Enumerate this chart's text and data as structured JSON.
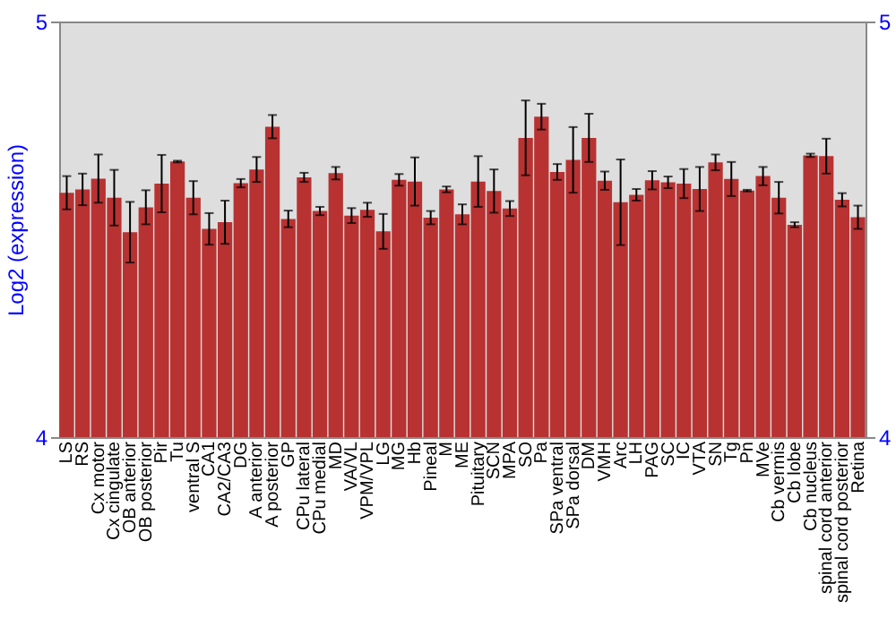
{
  "chart_data": {
    "type": "bar",
    "ylabel": "Log2 (expression)",
    "categories": [
      "LS",
      "RS",
      "Cx motor",
      "Cx cingulate",
      "OB anterior",
      "OB posterior",
      "Pir",
      "Tu",
      "ventral S",
      "CA1",
      "CA2/CA3",
      "DG",
      "A anterior",
      "A posterior",
      "GP",
      "CPu lateral",
      "CPu medial",
      "MD",
      "VA/VL",
      "VPM/VPL",
      "LG",
      "MG",
      "Hb",
      "Pineal",
      "M",
      "ME",
      "Pituitary",
      "SCN",
      "MPA",
      "SO",
      "Pa",
      "SPa ventral",
      "SPa dorsal",
      "DM",
      "VMH",
      "Arc",
      "LH",
      "PAG",
      "SC",
      "IC",
      "VTA",
      "SN",
      "Tg",
      "Pn",
      "MVe",
      "Cb vermis",
      "Cb lobe",
      "Cb nucleus",
      "spinal cord anterior",
      "spinal cord posterior",
      "Retina"
    ],
    "values": [
      4.588,
      4.596,
      4.622,
      4.576,
      4.493,
      4.553,
      4.61,
      4.663,
      4.576,
      4.501,
      4.517,
      4.611,
      4.644,
      4.747,
      4.525,
      4.625,
      4.544,
      4.635,
      4.533,
      4.547,
      4.495,
      4.619,
      4.615,
      4.528,
      4.596,
      4.536,
      4.615,
      4.592,
      4.55,
      4.72,
      4.771,
      4.638,
      4.667,
      4.72,
      4.617,
      4.565,
      4.583,
      4.618,
      4.613,
      4.61,
      4.597,
      4.661,
      4.621,
      4.593,
      4.628,
      4.576,
      4.511,
      4.678,
      4.676,
      4.571,
      4.529
    ],
    "errors": [
      0.04,
      0.038,
      0.058,
      0.067,
      0.073,
      0.041,
      0.069,
      0.002,
      0.04,
      0.038,
      0.052,
      0.01,
      0.03,
      0.028,
      0.02,
      0.011,
      0.01,
      0.015,
      0.018,
      0.017,
      0.042,
      0.014,
      0.058,
      0.016,
      0.007,
      0.024,
      0.061,
      0.052,
      0.018,
      0.09,
      0.031,
      0.019,
      0.079,
      0.058,
      0.022,
      0.103,
      0.014,
      0.022,
      0.014,
      0.035,
      0.053,
      0.019,
      0.041,
      0.002,
      0.022,
      0.038,
      0.006,
      0.004,
      0.042,
      0.016,
      0.028
    ],
    "color": "#b83232",
    "ylim": [
      4,
      5
    ],
    "yticks": [
      4,
      5
    ],
    "y2lim": [
      4,
      5
    ],
    "y2ticks": [
      4,
      5
    ],
    "grid": false
  }
}
